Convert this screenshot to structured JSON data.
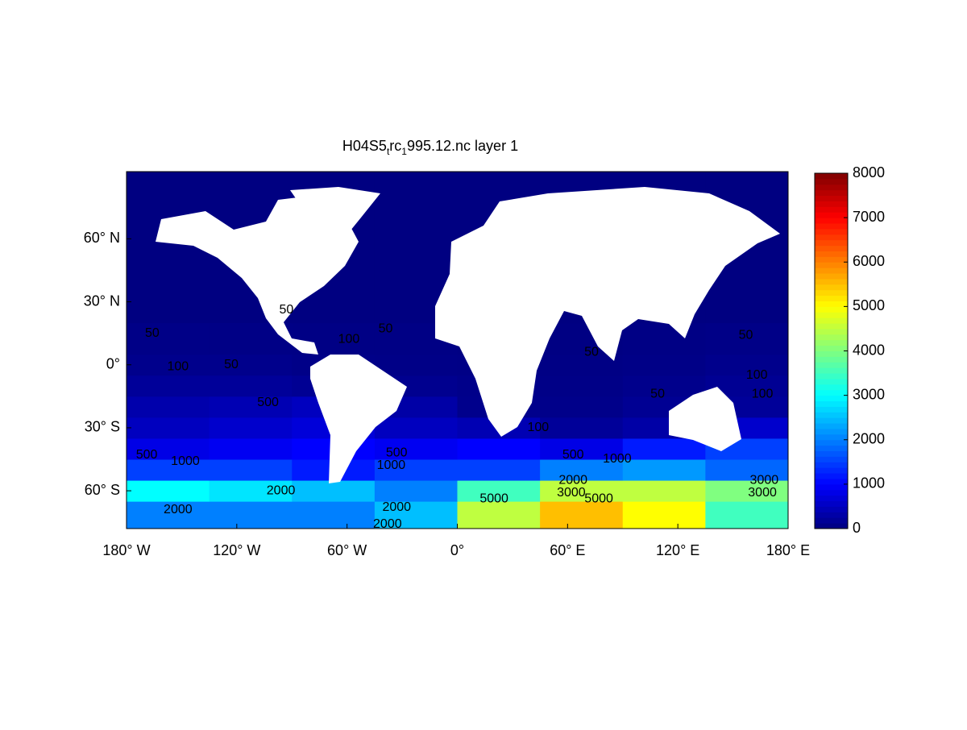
{
  "chart_data": {
    "type": "heatmap",
    "title_parts": [
      "H04S5",
      "t",
      "rc",
      "1",
      "995.12.nc layer 1"
    ],
    "xlim": [
      -180,
      180
    ],
    "ylim": [
      -78,
      92
    ],
    "xticks": [
      {
        "value": -180,
        "label": "180° W"
      },
      {
        "value": -120,
        "label": "120° W"
      },
      {
        "value": -60,
        "label": "60° W"
      },
      {
        "value": 0,
        "label": "0°"
      },
      {
        "value": 60,
        "label": "60° E"
      },
      {
        "value": 120,
        "label": "120° E"
      },
      {
        "value": 180,
        "label": "180° E"
      }
    ],
    "yticks": [
      {
        "value": -60,
        "label": "60° S"
      },
      {
        "value": -30,
        "label": "30° S"
      },
      {
        "value": 0,
        "label": "0°"
      },
      {
        "value": 30,
        "label": "30° N"
      },
      {
        "value": 60,
        "label": "60° N"
      }
    ],
    "colormap": "jet",
    "colorbar": {
      "lim": [
        0,
        8000
      ],
      "ticks": [
        0,
        1000,
        2000,
        3000,
        4000,
        5000,
        6000,
        7000,
        8000
      ]
    },
    "field": {
      "lon_edges": [
        -180,
        -135,
        -90,
        -45,
        0,
        45,
        90,
        135,
        180
      ],
      "lat_edges": [
        -78,
        -65,
        -55,
        -45,
        -35,
        -25,
        -15,
        -5,
        5,
        20,
        92
      ],
      "values": [
        [
          2000,
          2000,
          2000,
          2500,
          4500,
          5500,
          5000,
          3500
        ],
        [
          3000,
          2800,
          2500,
          2000,
          3500,
          4500,
          4500,
          4000
        ],
        [
          1500,
          1500,
          1200,
          1500,
          1500,
          2000,
          2200,
          1800
        ],
        [
          800,
          900,
          1000,
          900,
          1000,
          800,
          1200,
          1500
        ],
        [
          500,
          600,
          700,
          500,
          400,
          200,
          300,
          600
        ],
        [
          350,
          400,
          500,
          300,
          100,
          80,
          150,
          200
        ],
        [
          200,
          200,
          150,
          120,
          80,
          60,
          100,
          150
        ],
        [
          100,
          100,
          70,
          60,
          50,
          40,
          60,
          100
        ],
        [
          60,
          50,
          40,
          40,
          30,
          30,
          40,
          60
        ],
        [
          10,
          10,
          10,
          10,
          10,
          10,
          10,
          10
        ]
      ]
    },
    "contour_labels": [
      {
        "value": 50,
        "lon": -166,
        "lat": 15
      },
      {
        "value": 100,
        "lon": -152,
        "lat": -1
      },
      {
        "value": 50,
        "lon": -123,
        "lat": 0
      },
      {
        "value": 500,
        "lon": -103,
        "lat": -18
      },
      {
        "value": 500,
        "lon": -169,
        "lat": -43
      },
      {
        "value": 1000,
        "lon": -148,
        "lat": -46
      },
      {
        "value": 2000,
        "lon": -96,
        "lat": -60
      },
      {
        "value": 2000,
        "lon": -152,
        "lat": -69
      },
      {
        "value": 50,
        "lon": -93,
        "lat": 26
      },
      {
        "value": 100,
        "lon": -59,
        "lat": 12
      },
      {
        "value": 50,
        "lon": -39,
        "lat": 17
      },
      {
        "value": 500,
        "lon": -33,
        "lat": -42
      },
      {
        "value": 1000,
        "lon": -36,
        "lat": -48
      },
      {
        "value": 2000,
        "lon": -33,
        "lat": -68
      },
      {
        "value": 2000,
        "lon": -38,
        "lat": -76
      },
      {
        "value": 5000,
        "lon": 20,
        "lat": -64
      },
      {
        "value": 100,
        "lon": 44,
        "lat": -30
      },
      {
        "value": 50,
        "lon": 73,
        "lat": 6
      },
      {
        "value": 500,
        "lon": 63,
        "lat": -43
      },
      {
        "value": 1000,
        "lon": 87,
        "lat": -45
      },
      {
        "value": 2000,
        "lon": 63,
        "lat": -55
      },
      {
        "value": 3000,
        "lon": 62,
        "lat": -61
      },
      {
        "value": 5000,
        "lon": 77,
        "lat": -64
      },
      {
        "value": 50,
        "lon": 109,
        "lat": -14
      },
      {
        "value": 50,
        "lon": 157,
        "lat": 14
      },
      {
        "value": 100,
        "lon": 163,
        "lat": -5
      },
      {
        "value": 100,
        "lon": 166,
        "lat": -14
      },
      {
        "value": 3000,
        "lon": 167,
        "lat": -55
      },
      {
        "value": 3000,
        "lon": 166,
        "lat": -61
      }
    ]
  }
}
